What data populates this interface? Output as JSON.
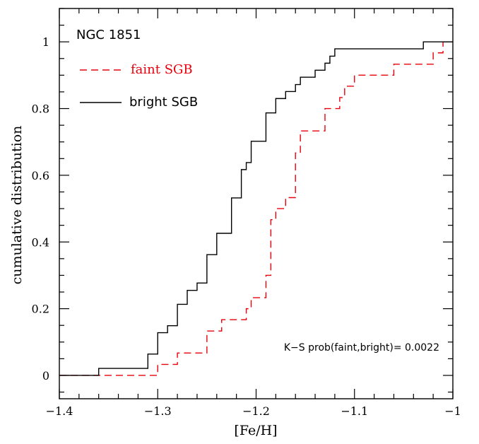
{
  "chart_data": {
    "type": "line",
    "line_shape": "step",
    "xlabel": "[Fe/H]",
    "ylabel": "cumulative distribution",
    "xlim": [
      -1.4,
      -1.0
    ],
    "ylim": [
      -0.07,
      1.1
    ],
    "x_ticks": [
      -1.4,
      -1.3,
      -1.2,
      -1.1,
      -1.0
    ],
    "x_tick_labels": [
      "−1.4",
      "−1.3",
      "−1.2",
      "−1.1",
      "−1"
    ],
    "y_ticks": [
      0,
      0.2,
      0.4,
      0.6,
      0.8,
      1.0
    ],
    "y_tick_labels": [
      "0",
      "0.2",
      "0.4",
      "0.6",
      "0.8",
      "1"
    ],
    "grid": false,
    "legend_position": "top-left",
    "legend_title": "NGC 1851",
    "annotation": "K−S prob(faint,bright)= 0.0022",
    "series": [
      {
        "name": "faint SGB",
        "color": "#e8000b",
        "dash": "dashed",
        "x": [
          -1.4,
          -1.37,
          -1.3,
          -1.29,
          -1.28,
          -1.26,
          -1.25,
          -1.24,
          -1.235,
          -1.22,
          -1.21,
          -1.205,
          -1.195,
          -1.19,
          -1.185,
          -1.18,
          -1.175,
          -1.17,
          -1.165,
          -1.16,
          -1.155,
          -1.14,
          -1.13,
          -1.125,
          -1.115,
          -1.11,
          -1.105,
          -1.1,
          -1.09,
          -1.08,
          -1.075,
          -1.06,
          -1.05,
          -1.03,
          -1.02,
          -1.015,
          -1.01
        ],
        "y": [
          0,
          0,
          0.033,
          0.033,
          0.067,
          0.067,
          0.133,
          0.133,
          0.167,
          0.167,
          0.2,
          0.233,
          0.233,
          0.3,
          0.467,
          0.5,
          0.5,
          0.533,
          0.533,
          0.667,
          0.733,
          0.733,
          0.8,
          0.8,
          0.833,
          0.867,
          0.867,
          0.9,
          0.9,
          0.9,
          0.9,
          0.933,
          0.933,
          0.933,
          0.967,
          0.967,
          1.0
        ]
      },
      {
        "name": "bright SGB",
        "color": "#000000",
        "dash": "solid",
        "x": [
          -1.4,
          -1.36,
          -1.31,
          -1.305,
          -1.3,
          -1.295,
          -1.29,
          -1.285,
          -1.28,
          -1.275,
          -1.27,
          -1.265,
          -1.26,
          -1.25,
          -1.245,
          -1.24,
          -1.235,
          -1.225,
          -1.22,
          -1.215,
          -1.21,
          -1.205,
          -1.195,
          -1.19,
          -1.185,
          -1.18,
          -1.175,
          -1.17,
          -1.165,
          -1.16,
          -1.155,
          -1.15,
          -1.14,
          -1.135,
          -1.13,
          -1.125,
          -1.12,
          -1.1,
          -1.08,
          -1.06,
          -1.03,
          -1.0
        ],
        "y": [
          0,
          0.021,
          0.064,
          0.064,
          0.128,
          0.128,
          0.149,
          0.149,
          0.213,
          0.213,
          0.255,
          0.255,
          0.277,
          0.362,
          0.362,
          0.426,
          0.426,
          0.532,
          0.532,
          0.617,
          0.638,
          0.702,
          0.702,
          0.787,
          0.787,
          0.83,
          0.83,
          0.851,
          0.851,
          0.872,
          0.894,
          0.894,
          0.915,
          0.915,
          0.936,
          0.957,
          0.979,
          0.979,
          0.979,
          0.979,
          1.0,
          1.0
        ]
      }
    ]
  }
}
